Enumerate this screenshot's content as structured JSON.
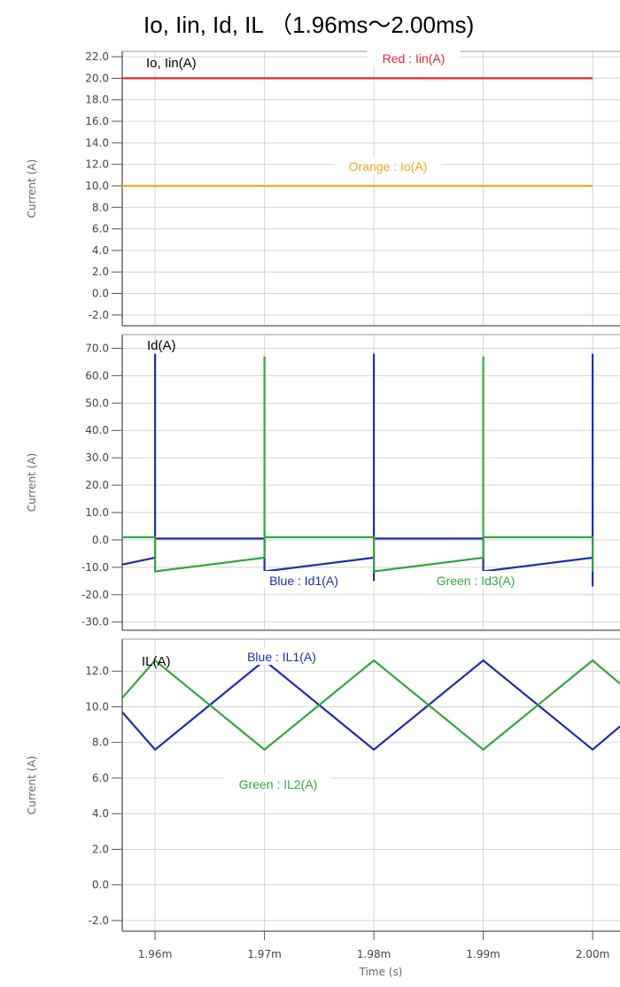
{
  "title": "Io, Iin, Id, IL （1.96ms～2.00ms)",
  "colors": {
    "red": "#e8262b",
    "orange": "#f5a623",
    "blue": "#1f2ea8",
    "green": "#34a540",
    "grid": "#d4d4d4",
    "axis": "#555555"
  },
  "x_axis": {
    "label": "Time (s)",
    "ticks": [
      0.00196,
      0.00197,
      0.00198,
      0.00199,
      0.002
    ],
    "tick_labels": [
      "1.96m",
      "1.97m",
      "1.98m",
      "1.99m",
      "2.00m"
    ]
  },
  "chart_data": [
    {
      "type": "line",
      "panel_label": "Io, Iin(A)",
      "ylabel": "Current (A)",
      "ylim": [
        -3,
        22.5
      ],
      "xlim": [
        0.001957,
        0.002
      ],
      "y_ticks": [
        22,
        20,
        18,
        16,
        14,
        12,
        10,
        8,
        6,
        4,
        2,
        0,
        -2
      ],
      "y_tick_labels": [
        "22.0",
        "20.0",
        "18.0",
        "16.0",
        "14.0",
        "12.0",
        "10.0",
        "8.0",
        "6.0",
        "4.0",
        "2.0",
        "0.0",
        "-2.0"
      ],
      "grid": true,
      "series": [
        {
          "name": "Red : Iin(A)",
          "color": "red",
          "x": [
            0.001957,
            0.002
          ],
          "y": [
            20,
            20
          ]
        },
        {
          "name": "Orange : Io(A)",
          "color": "orange",
          "x": [
            0.001957,
            0.002
          ],
          "y": [
            10,
            10
          ]
        }
      ]
    },
    {
      "type": "line",
      "panel_label": "Id(A)",
      "ylabel": "Current (A)",
      "ylim": [
        -33,
        75
      ],
      "xlim": [
        0.001957,
        0.002
      ],
      "y_ticks": [
        70,
        60,
        50,
        40,
        30,
        20,
        10,
        0,
        -10,
        -20,
        -30
      ],
      "y_tick_labels": [
        "70.0",
        "60.0",
        "50.0",
        "40.0",
        "30.0",
        "20.0",
        "10.0",
        "0.0",
        "-10.0",
        "-20.0",
        "-30.0"
      ],
      "grid": true,
      "series": [
        {
          "name": "Blue : Id1(A)",
          "color": "blue",
          "x": [
            0.001957,
            0.00196,
            0.00196,
            0.00196,
            0.00197,
            0.00197,
            0.00197,
            0.00198,
            0.00198,
            0.00198,
            0.00198,
            0.00199,
            0.00199,
            0.00199,
            0.002,
            0.002,
            0.002,
            0.002
          ],
          "y": [
            -9,
            -6.5,
            68,
            0.5,
            0.5,
            -11.5,
            -11.5,
            -6.5,
            68,
            -15,
            0.5,
            0.5,
            -11.5,
            -11.5,
            -6.5,
            68,
            -17,
            0.5
          ]
        },
        {
          "name": "Green : Id3(A)",
          "color": "green",
          "x": [
            0.001957,
            0.00196,
            0.00196,
            0.00197,
            0.00197,
            0.00197,
            0.00198,
            0.00198,
            0.00198,
            0.00199,
            0.00199,
            0.00199,
            0.002,
            0.002
          ],
          "y": [
            1,
            1,
            -11.5,
            -6.5,
            67,
            1,
            1,
            -12,
            -11.5,
            -6.5,
            67,
            1,
            1,
            -11.5
          ]
        }
      ]
    },
    {
      "type": "line",
      "panel_label": "IL(A)",
      "ylabel": "Current (A)",
      "ylim": [
        -2.6,
        13.8
      ],
      "xlim": [
        0.001957,
        0.002
      ],
      "y_ticks": [
        12,
        10,
        8,
        6,
        4,
        2,
        0,
        -2
      ],
      "y_tick_labels": [
        "12.0",
        "10.0",
        "8.0",
        "6.0",
        "4.0",
        "2.0",
        "0.0",
        "-2.0"
      ],
      "grid": true,
      "series": [
        {
          "name": "Blue : IL1(A)",
          "color": "blue",
          "x": [
            0.001957,
            0.00196,
            0.00197,
            0.00198,
            0.00199,
            0.002,
            0.0020025
          ],
          "y": [
            9.7,
            7.6,
            12.6,
            7.6,
            12.6,
            7.6,
            8.9
          ]
        },
        {
          "name": "Green : IL2(A)",
          "color": "green",
          "x": [
            0.001957,
            0.00196,
            0.00197,
            0.00198,
            0.00199,
            0.002,
            0.0020025
          ],
          "y": [
            10.5,
            12.6,
            7.6,
            12.6,
            7.6,
            12.6,
            11.3
          ]
        }
      ]
    }
  ]
}
